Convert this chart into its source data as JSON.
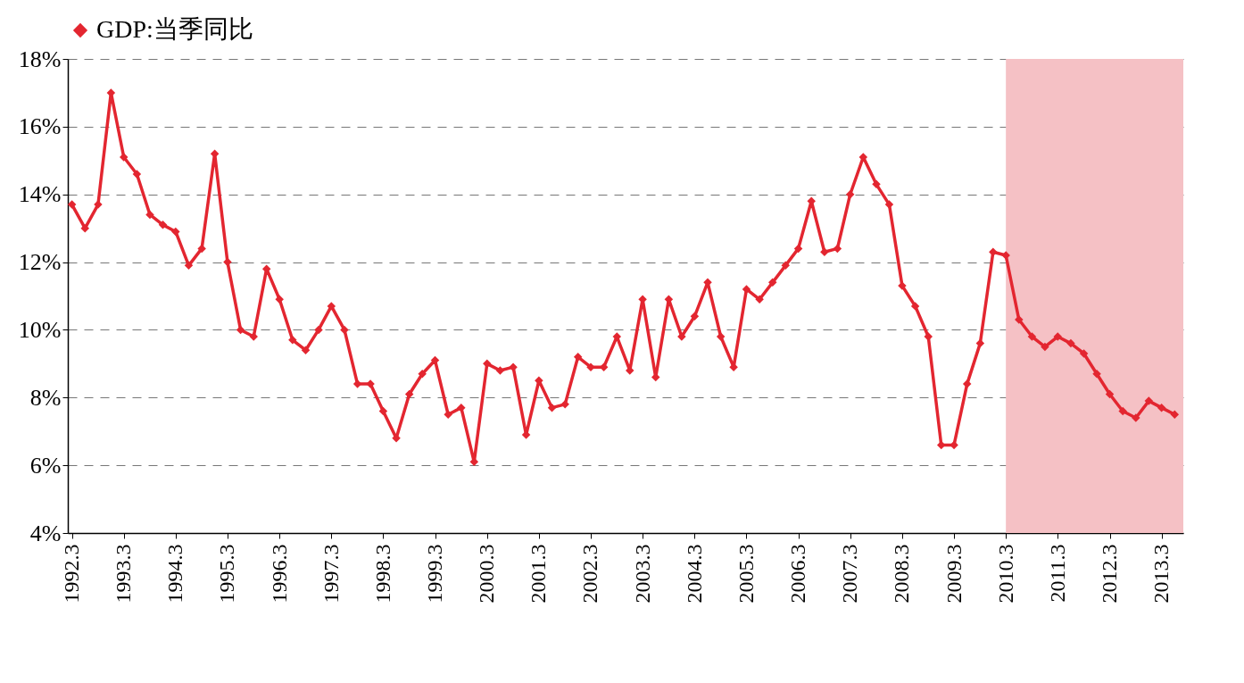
{
  "chart_data": {
    "type": "line",
    "x": [
      "1992-03",
      "1992-06",
      "1992-09",
      "1992-12",
      "1993-03",
      "1993-06",
      "1993-09",
      "1993-12",
      "1994-03",
      "1994-06",
      "1994-09",
      "1994-12",
      "1995-03",
      "1995-06",
      "1995-09",
      "1995-12",
      "1996-03",
      "1996-06",
      "1996-09",
      "1996-12",
      "1997-03",
      "1997-06",
      "1997-09",
      "1997-12",
      "1998-03",
      "1998-06",
      "1998-09",
      "1998-12",
      "1999-03",
      "1999-06",
      "1999-09",
      "1999-12",
      "2000-03",
      "2000-06",
      "2000-09",
      "2000-12",
      "2001-03",
      "2001-06",
      "2001-09",
      "2001-12",
      "2002-03",
      "2002-06",
      "2002-09",
      "2002-12",
      "2003-03",
      "2003-06",
      "2003-09",
      "2003-12",
      "2004-03",
      "2004-06",
      "2004-09",
      "2004-12",
      "2005-03",
      "2005-06",
      "2005-09",
      "2005-12",
      "2006-03",
      "2006-06",
      "2006-09",
      "2006-12",
      "2007-03",
      "2007-06",
      "2007-09",
      "2007-12",
      "2008-03",
      "2008-06",
      "2008-09",
      "2008-12",
      "2009-03",
      "2009-06",
      "2009-09",
      "2009-12",
      "2010-03",
      "2010-06",
      "2010-09",
      "2010-12",
      "2011-03",
      "2011-06",
      "2011-09",
      "2011-12",
      "2012-03",
      "2012-06",
      "2012-09",
      "2012-12",
      "2013-03",
      "2013-06"
    ],
    "series": [
      {
        "name": "GDP:当季同比",
        "color": "#e32630",
        "values": [
          13.7,
          13.0,
          13.7,
          17.0,
          15.1,
          14.6,
          13.4,
          13.1,
          12.9,
          11.9,
          12.4,
          15.2,
          12.0,
          10.0,
          9.8,
          11.8,
          10.9,
          9.7,
          9.4,
          10.0,
          10.7,
          10.0,
          8.4,
          8.4,
          7.6,
          6.8,
          8.1,
          8.7,
          9.1,
          7.5,
          7.7,
          6.1,
          9.0,
          8.8,
          8.9,
          6.9,
          8.5,
          7.7,
          7.8,
          9.2,
          8.9,
          8.9,
          9.8,
          8.8,
          10.9,
          8.6,
          10.9,
          9.8,
          10.4,
          11.4,
          9.8,
          8.9,
          11.2,
          10.9,
          11.4,
          11.9,
          12.4,
          13.8,
          12.3,
          12.4,
          14.0,
          15.1,
          14.3,
          13.7,
          11.3,
          10.7,
          9.8,
          6.6,
          6.6,
          8.4,
          9.6,
          12.3,
          12.2,
          10.3,
          9.8,
          9.5,
          9.8,
          9.6,
          9.3,
          8.7,
          8.1,
          7.6,
          7.4,
          7.9,
          7.7,
          7.5
        ]
      }
    ],
    "xlim": [
      "1992-02",
      "2013-08"
    ],
    "xticks": [
      {
        "value": "1992-03",
        "label": "1992.3"
      },
      {
        "value": "1993-03",
        "label": "1993.3"
      },
      {
        "value": "1994-03",
        "label": "1994.3"
      },
      {
        "value": "1995-03",
        "label": "1995.3"
      },
      {
        "value": "1996-03",
        "label": "1996.3"
      },
      {
        "value": "1997-03",
        "label": "1997.3"
      },
      {
        "value": "1998-03",
        "label": "1998.3"
      },
      {
        "value": "1999-03",
        "label": "1999.3"
      },
      {
        "value": "2000-03",
        "label": "2000.3"
      },
      {
        "value": "2001-03",
        "label": "2001.3"
      },
      {
        "value": "2002-03",
        "label": "2002.3"
      },
      {
        "value": "2003-03",
        "label": "2003.3"
      },
      {
        "value": "2004-03",
        "label": "2004.3"
      },
      {
        "value": "2005-03",
        "label": "2005.3"
      },
      {
        "value": "2006-03",
        "label": "2006.3"
      },
      {
        "value": "2007-03",
        "label": "2007.3"
      },
      {
        "value": "2008-03",
        "label": "2008.3"
      },
      {
        "value": "2009-03",
        "label": "2009.3"
      },
      {
        "value": "2010-03",
        "label": "2010.3"
      },
      {
        "value": "2011-03",
        "label": "2011.3"
      },
      {
        "value": "2012-03",
        "label": "2012.3"
      },
      {
        "value": "2013-03",
        "label": "2013.3"
      }
    ],
    "ylim": [
      4,
      18
    ],
    "yticks": [
      {
        "value": 4,
        "label": "4%"
      },
      {
        "value": 6,
        "label": "6%"
      },
      {
        "value": 8,
        "label": "8%"
      },
      {
        "value": 10,
        "label": "10%"
      },
      {
        "value": 12,
        "label": "12%"
      },
      {
        "value": 14,
        "label": "14%"
      },
      {
        "value": 16,
        "label": "16%"
      },
      {
        "value": 18,
        "label": "18%"
      }
    ],
    "bands": [
      {
        "axis": "x",
        "from": "2010-03",
        "to": "2013-08",
        "color": "#f5c1c5"
      }
    ],
    "grid": "y",
    "legend": "top",
    "marker": "diamond",
    "line_style": "solid"
  }
}
